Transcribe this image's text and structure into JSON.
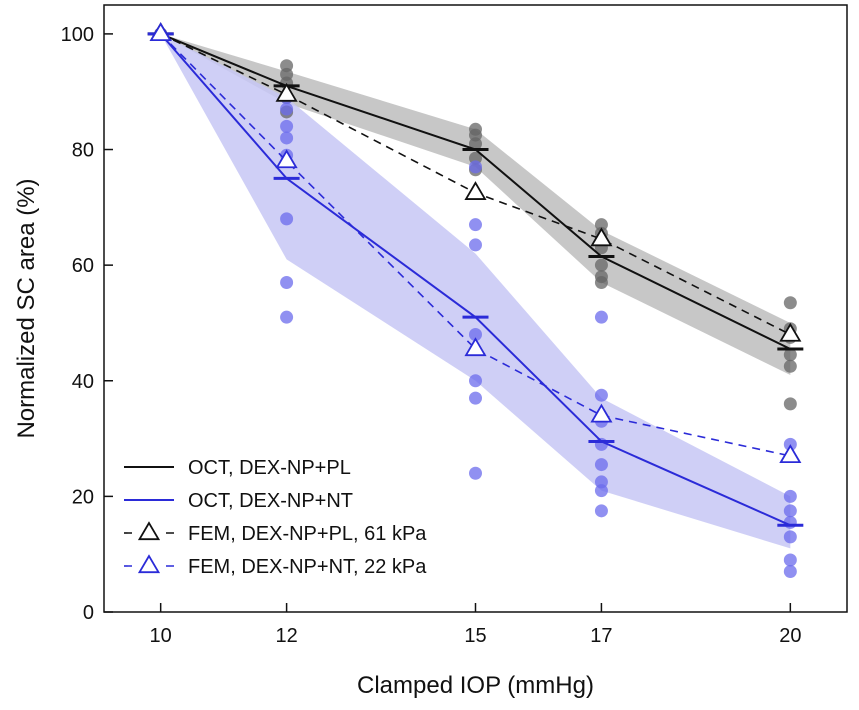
{
  "chart_data": {
    "type": "line",
    "title": "",
    "xlabel": "Clamped IOP (mmHg)",
    "ylabel": "Normalized SC area (%)",
    "xlim": [
      9.1,
      20.9
    ],
    "ylim": [
      0,
      105
    ],
    "x_ticks": [
      10,
      12,
      15,
      17,
      20
    ],
    "y_ticks": [
      0,
      20,
      40,
      60,
      80,
      100
    ],
    "x_tick_labels": [
      "10",
      "12",
      "15",
      "17",
      "20"
    ],
    "y_tick_labels": [
      "0",
      "20",
      "40",
      "60",
      "80",
      "100"
    ],
    "grid": false,
    "legend_position": "bottom-left",
    "colors": {
      "pl": "#111111",
      "nt": "#2b2bd8",
      "pl_band": "#bdbdbd",
      "nt_band": "#c7c7f5",
      "pl_dots": "#666666",
      "nt_dots": "#6b6bec"
    },
    "series": [
      {
        "name": "OCT, DEX-NP+PL",
        "kind": "line-mean",
        "color": "#111111",
        "x": [
          10,
          12,
          15,
          17,
          20
        ],
        "values": [
          100,
          91,
          80,
          61.5,
          45.5
        ],
        "band_low": [
          100,
          88,
          77,
          57,
          41
        ],
        "band_high": [
          100,
          93.5,
          83.5,
          66,
          50
        ]
      },
      {
        "name": "OCT, DEX-NP+NT",
        "kind": "line-mean",
        "color": "#2b2bd8",
        "x": [
          10,
          12,
          15,
          17,
          20
        ],
        "values": [
          100,
          75,
          51,
          29.5,
          15
        ],
        "band_low": [
          100,
          61,
          40,
          21,
          11
        ],
        "band_high": [
          100,
          89,
          62,
          37,
          20
        ]
      },
      {
        "name": "FEM, DEX-NP+PL, 61 kPa",
        "kind": "fem-dashed",
        "color": "#111111",
        "x": [
          10,
          12,
          15,
          17,
          20
        ],
        "values": [
          100,
          89.5,
          72.5,
          64.5,
          48
        ]
      },
      {
        "name": "FEM, DEX-NP+NT, 22 kPa",
        "kind": "fem-dashed",
        "color": "#2b2bd8",
        "x": [
          10,
          12,
          15,
          17,
          20
        ],
        "values": [
          100,
          78,
          45.5,
          34,
          27
        ]
      }
    ],
    "scatter": [
      {
        "name": "OCT samples, DEX-NP+PL",
        "color": "#666666",
        "points": [
          [
            10,
            100
          ],
          [
            10,
            100
          ],
          [
            12,
            94.5
          ],
          [
            12,
            93
          ],
          [
            12,
            91.5
          ],
          [
            12,
            89
          ],
          [
            12,
            86.5
          ],
          [
            15,
            83.5
          ],
          [
            15,
            82.5
          ],
          [
            15,
            81
          ],
          [
            15,
            78.5
          ],
          [
            15,
            76.5
          ],
          [
            17,
            67
          ],
          [
            17,
            65.5
          ],
          [
            17,
            63
          ],
          [
            17,
            60
          ],
          [
            17,
            58
          ],
          [
            17,
            57
          ],
          [
            20,
            53.5
          ],
          [
            20,
            49
          ],
          [
            20,
            47.5
          ],
          [
            20,
            44.5
          ],
          [
            20,
            42.5
          ],
          [
            20,
            36
          ]
        ]
      },
      {
        "name": "OCT samples, DEX-NP+NT",
        "color": "#6b6bec",
        "points": [
          [
            10,
            100
          ],
          [
            12,
            89
          ],
          [
            12,
            87
          ],
          [
            12,
            84
          ],
          [
            12,
            82
          ],
          [
            12,
            79
          ],
          [
            12,
            68
          ],
          [
            12,
            57
          ],
          [
            12,
            51
          ],
          [
            15,
            77
          ],
          [
            15,
            67
          ],
          [
            15,
            63.5
          ],
          [
            15,
            48
          ],
          [
            15,
            40
          ],
          [
            15,
            37
          ],
          [
            15,
            24
          ],
          [
            17,
            51
          ],
          [
            17,
            37.5
          ],
          [
            17,
            33
          ],
          [
            17,
            29
          ],
          [
            17,
            25.5
          ],
          [
            17,
            22.5
          ],
          [
            17,
            21
          ],
          [
            17,
            17.5
          ],
          [
            20,
            29
          ],
          [
            20,
            20
          ],
          [
            20,
            17.5
          ],
          [
            20,
            15.5
          ],
          [
            20,
            13
          ],
          [
            20,
            9
          ],
          [
            20,
            7
          ]
        ]
      }
    ],
    "legend": [
      {
        "label": "OCT, DEX-NP+PL",
        "style": "solid",
        "color": "#111111",
        "marker": "none"
      },
      {
        "label": "OCT, DEX-NP+NT",
        "style": "solid",
        "color": "#2b2bd8",
        "marker": "none"
      },
      {
        "label": "FEM, DEX-NP+PL, 61 kPa",
        "style": "dashed",
        "color": "#111111",
        "marker": "triangle"
      },
      {
        "label": "FEM, DEX-NP+NT, 22 kPa",
        "style": "dashed",
        "color": "#2b2bd8",
        "marker": "triangle"
      }
    ]
  }
}
